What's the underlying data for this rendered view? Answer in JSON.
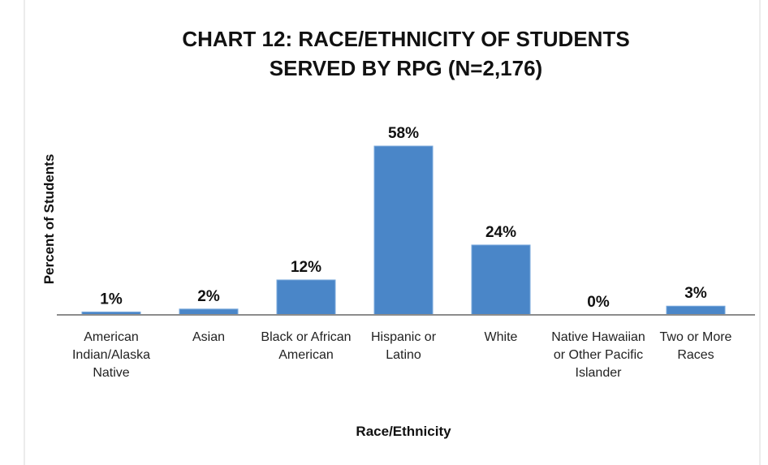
{
  "chart_data": {
    "type": "bar",
    "title": "CHART 12: RACE/ETHNICITY OF STUDENTS SERVED BY RPG (N=2,176)",
    "x_label": "Race/Ethnicity",
    "y_label": "Percent of Students",
    "categories": [
      "American Indian/Alaska Native",
      "Asian",
      "Black or African American",
      "Hispanic or Latino",
      "White",
      "Native Hawaiian or Other Pacific Islander",
      "Two or More Races"
    ],
    "values": [
      1,
      2,
      12,
      58,
      24,
      0,
      3
    ],
    "value_labels": [
      "1%",
      "2%",
      "12%",
      "58%",
      "24%",
      "0%",
      "3%"
    ],
    "color": "#4a86c8",
    "ylim": [
      0,
      70
    ]
  }
}
